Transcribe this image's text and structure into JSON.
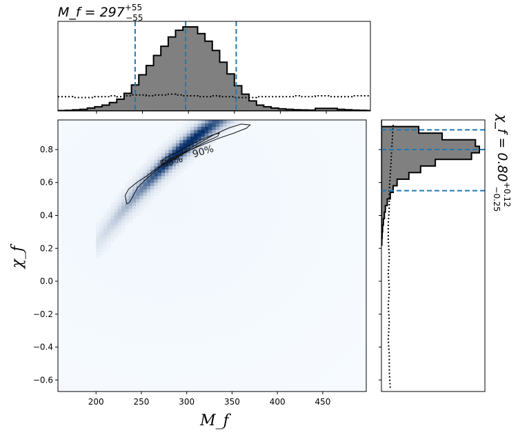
{
  "chart_data": [
    {
      "type": "heatmap",
      "panel": "joint",
      "xlabel": "M_f",
      "ylabel": "χ_f",
      "xlim": [
        158,
        498
      ],
      "ylim": [
        -0.67,
        0.98
      ],
      "x_ticks": [
        200,
        250,
        300,
        350,
        400,
        450
      ],
      "x_tick_labels": [
        "200",
        "250",
        "300",
        "350",
        "400",
        "450"
      ],
      "y_ticks": [
        -0.6,
        -0.4,
        -0.2,
        0.0,
        0.2,
        0.4,
        0.6,
        0.8
      ],
      "y_tick_labels": [
        "−0.6",
        "−0.4",
        "−0.2",
        "0.0",
        "0.2",
        "0.4",
        "0.6",
        "0.8"
      ],
      "colormap": "Blues",
      "contours": [
        {
          "label": "90%",
          "points": [
            [
              234,
              0.47
            ],
            [
              232,
              0.52
            ],
            [
              236,
              0.56
            ],
            [
              245,
              0.6
            ],
            [
              256,
              0.64
            ],
            [
              268,
              0.69
            ],
            [
              282,
              0.74
            ],
            [
              298,
              0.79
            ],
            [
              314,
              0.84
            ],
            [
              330,
              0.89
            ],
            [
              346,
              0.93
            ],
            [
              360,
              0.955
            ],
            [
              370,
              0.95
            ],
            [
              366,
              0.93
            ],
            [
              352,
              0.9
            ],
            [
              336,
              0.87
            ],
            [
              318,
              0.83
            ],
            [
              300,
              0.79
            ],
            [
              284,
              0.74
            ],
            [
              270,
              0.69
            ],
            [
              257,
              0.63
            ],
            [
              246,
              0.57
            ],
            [
              240,
              0.51
            ],
            [
              237,
              0.48
            ]
          ]
        },
        {
          "label": "50%",
          "points": [
            [
              272,
              0.71
            ],
            [
              271,
              0.73
            ],
            [
              280,
              0.76
            ],
            [
              292,
              0.79
            ],
            [
              304,
              0.83
            ],
            [
              316,
              0.86
            ],
            [
              329,
              0.89
            ],
            [
              336,
              0.9
            ],
            [
              334,
              0.88
            ],
            [
              322,
              0.85
            ],
            [
              308,
              0.81
            ],
            [
              295,
              0.77
            ],
            [
              283,
              0.73
            ],
            [
              275,
              0.71
            ]
          ]
        }
      ],
      "contour_labels": [
        "50%",
        "90%"
      ]
    },
    {
      "type": "histogram",
      "panel": "marginal-x",
      "title": "M_f = 297^{+55}_{-55}",
      "title_main": "M_f = 297",
      "title_sup": "+55",
      "title_sub": "−55",
      "xlim": [
        158,
        498
      ],
      "bin_edges": [
        158,
        166,
        174,
        182,
        190,
        198,
        206,
        214,
        222,
        230,
        238,
        246,
        254,
        262,
        270,
        278,
        286,
        294,
        302,
        310,
        318,
        326,
        334,
        342,
        350,
        358,
        366,
        374,
        382,
        390,
        398,
        406,
        414,
        422,
        430,
        438,
        446,
        454,
        462,
        470,
        478,
        486,
        494,
        498
      ],
      "counts": [
        0.005,
        0.008,
        0.013,
        0.02,
        0.035,
        0.05,
        0.07,
        0.1,
        0.14,
        0.21,
        0.31,
        0.43,
        0.54,
        0.66,
        0.77,
        0.88,
        0.96,
        1.0,
        1.0,
        0.92,
        0.83,
        0.72,
        0.58,
        0.44,
        0.3,
        0.2,
        0.12,
        0.07,
        0.05,
        0.035,
        0.025,
        0.02,
        0.015,
        0.012,
        0.01,
        0.03,
        0.03,
        0.03,
        0.02,
        0.015,
        0.01,
        0.008,
        0.005
      ],
      "prior": [
        0.17,
        0.17,
        0.16,
        0.16,
        0.16,
        0.17,
        0.17,
        0.18,
        0.17,
        0.18,
        0.19,
        0.19,
        0.18,
        0.19,
        0.19,
        0.2,
        0.19,
        0.18,
        0.18,
        0.17,
        0.17,
        0.18,
        0.17,
        0.17,
        0.16,
        0.16,
        0.16,
        0.17,
        0.17,
        0.17,
        0.17,
        0.17,
        0.18,
        0.17,
        0.17,
        0.18,
        0.18,
        0.17,
        0.17,
        0.17,
        0.18,
        0.18,
        0.18
      ],
      "vlines": [
        242,
        297,
        352
      ]
    },
    {
      "type": "histogram",
      "panel": "marginal-y",
      "orientation": "horizontal",
      "label": "χ_f = 0.80^{+0.12}_{-0.25}",
      "label_main": "χ_f = 0.80",
      "label_sup": "+0.12",
      "label_sub": "−0.25",
      "ylim": [
        -0.67,
        0.98
      ],
      "bin_edges": [
        0.98,
        0.94,
        0.9,
        0.86,
        0.82,
        0.78,
        0.74,
        0.7,
        0.66,
        0.62,
        0.58,
        0.54,
        0.5,
        0.46,
        0.42,
        0.38,
        0.34,
        0.3,
        0.26,
        0.22
      ],
      "counts": [
        0.0,
        0.38,
        0.62,
        0.96,
        1.0,
        0.92,
        0.55,
        0.4,
        0.28,
        0.16,
        0.12,
        0.09,
        0.06,
        0.04,
        0.03,
        0.02,
        0.012,
        0.008,
        0.004
      ],
      "prior_y": [
        0.95,
        0.85,
        0.75,
        0.65,
        0.55,
        0.45,
        0.35,
        0.25,
        0.15,
        0.05,
        -0.05,
        -0.15,
        -0.25,
        -0.35,
        -0.45,
        -0.55,
        -0.65
      ],
      "prior": [
        0.12,
        0.11,
        0.1,
        0.09,
        0.08,
        0.08,
        0.07,
        0.07,
        0.08,
        0.07,
        0.08,
        0.07,
        0.08,
        0.07,
        0.08,
        0.08,
        0.09
      ],
      "hlines": [
        0.92,
        0.8,
        0.55
      ]
    }
  ],
  "colors": {
    "hist_fill": "#808080",
    "hist_edge": "#000000",
    "quantile_line": "#1f77b4",
    "heat_low": "#f7fbff",
    "heat_high": "#08306b"
  }
}
